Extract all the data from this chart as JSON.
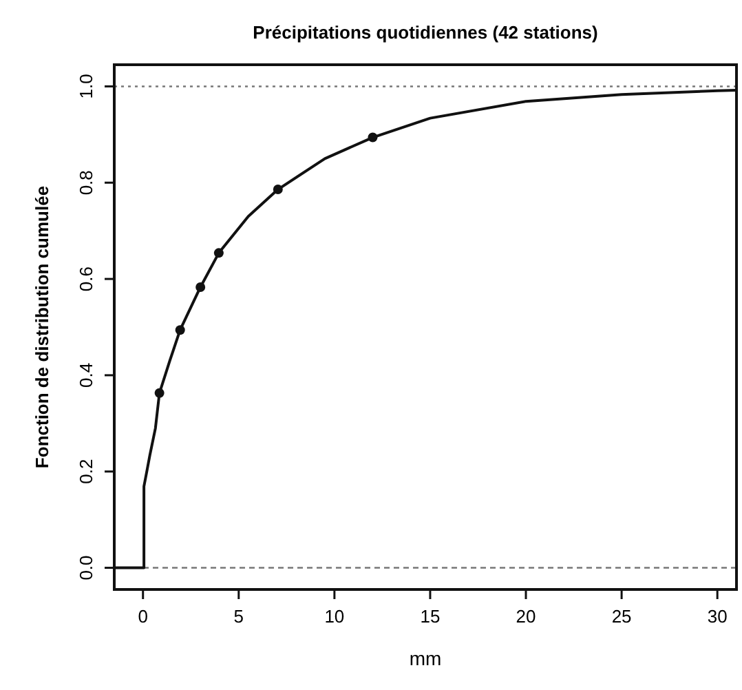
{
  "chart_data": {
    "type": "line",
    "title": "Précipitations quotidiennes (42 stations)",
    "xlabel": "mm",
    "ylabel": "Fonction de distribution cumulée",
    "xlim": [
      -1.5,
      31
    ],
    "ylim": [
      -0.045,
      1.045
    ],
    "xticks": [
      0,
      5,
      10,
      15,
      20,
      25,
      30
    ],
    "yticks": [
      {
        "value": 0,
        "label": "0.0"
      },
      0.2,
      0.4,
      0.6,
      0.8,
      {
        "value": 1,
        "label": "1.0"
      }
    ],
    "grid": false,
    "series": [
      {
        "color": "#111111",
        "marker": "none",
        "line_style": "solid",
        "x": [
          -1.5,
          0.05,
          0.05,
          0.2,
          0.36,
          0.65,
          0.86,
          1.4,
          1.94,
          3.0,
          3.96,
          5.5,
          7.05,
          9.5,
          12.0,
          15,
          20,
          25,
          30,
          31
        ],
        "values": [
          0,
          0,
          0.169,
          0.2,
          0.234,
          0.29,
          0.363,
          0.43,
          0.494,
          0.583,
          0.654,
          0.73,
          0.786,
          0.85,
          0.894,
          0.934,
          0.969,
          0.983,
          0.991,
          0.992
        ]
      },
      {
        "type": "scatter",
        "color": "#111111",
        "marker": "circle",
        "x": [
          0.86,
          1.94,
          3.0,
          3.96,
          7.05,
          12.0
        ],
        "values": [
          0.363,
          0.494,
          0.583,
          0.654,
          0.786,
          0.894
        ]
      }
    ],
    "ref_lines": [
      {
        "axis": "y",
        "value": 0,
        "color": "#777777",
        "line_style": "dashed"
      },
      {
        "axis": "y",
        "value": 1,
        "color": "#777777",
        "line_style": "dotted"
      }
    ]
  }
}
